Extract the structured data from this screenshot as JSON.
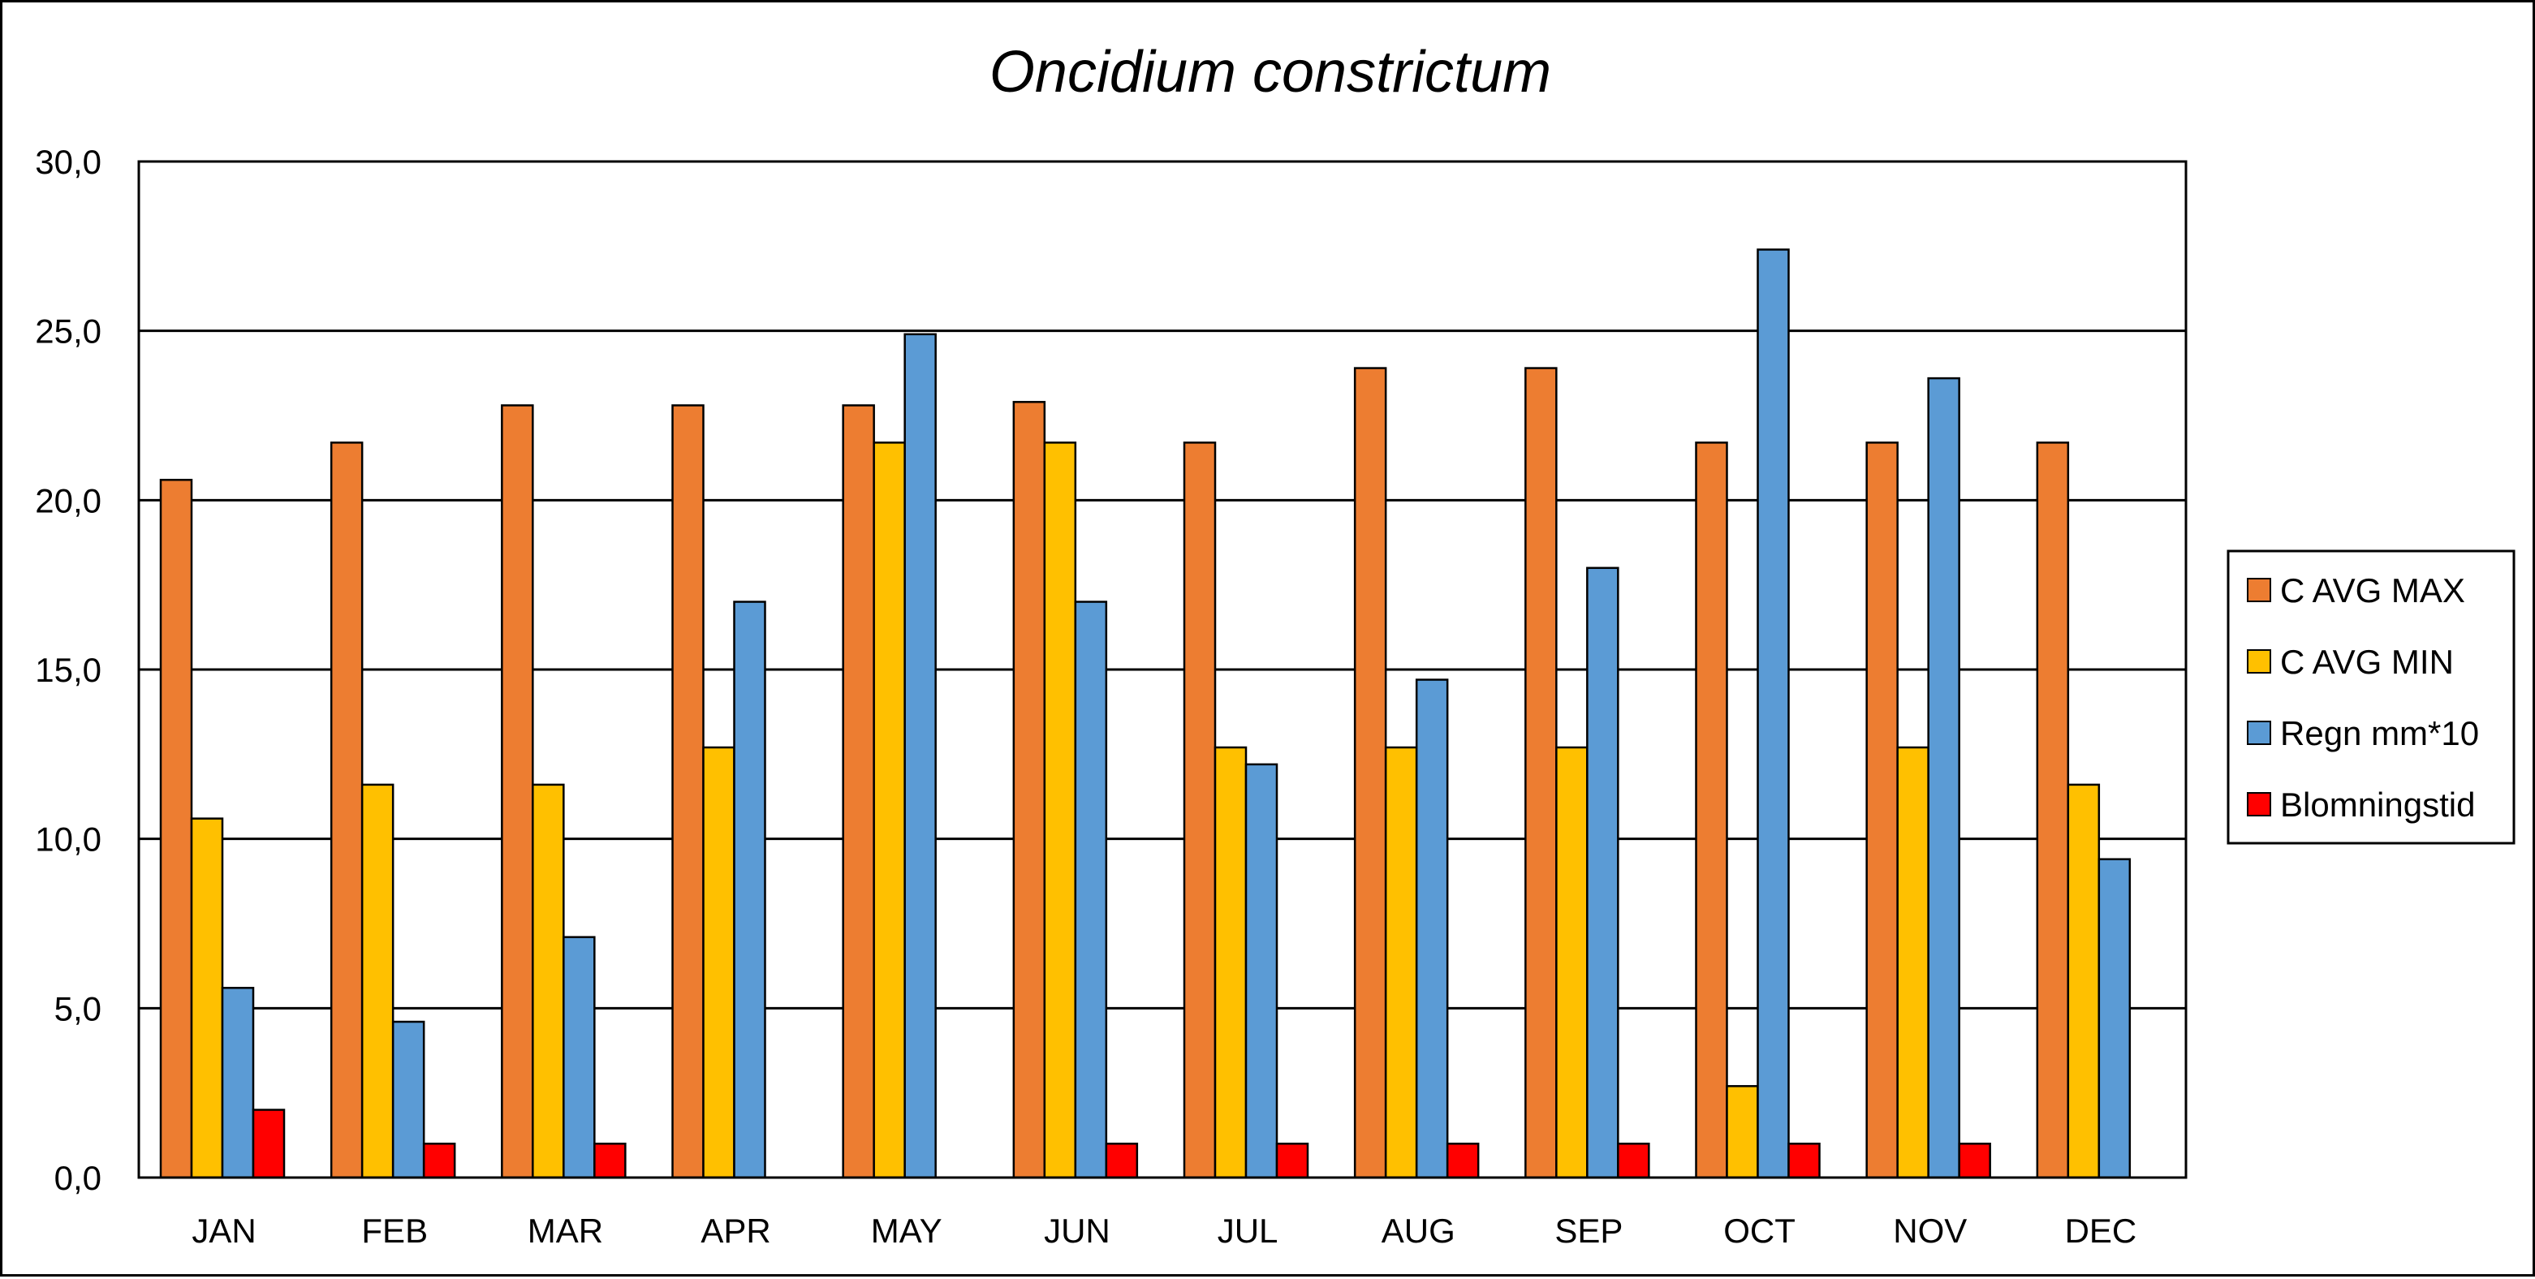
{
  "chart_data": {
    "type": "bar",
    "title": "Oncidium constrictum",
    "xlabel": "",
    "ylabel": "",
    "ylim": [
      0,
      30
    ],
    "yticks": [
      "0,0",
      "5,0",
      "10,0",
      "15,0",
      "20,0",
      "25,0",
      "30,0"
    ],
    "grid": true,
    "legend_position": "right",
    "categories": [
      "JAN",
      "FEB",
      "MAR",
      "APR",
      "MAY",
      "JUN",
      "JUL",
      "AUG",
      "SEP",
      "OCT",
      "NOV",
      "DEC"
    ],
    "series": [
      {
        "name": "C AVG MAX",
        "color": "#ED7D31",
        "values": [
          20.6,
          21.7,
          22.8,
          22.8,
          22.8,
          22.9,
          21.7,
          23.9,
          23.9,
          21.7,
          21.7,
          21.7
        ]
      },
      {
        "name": "C AVG MIN",
        "color": "#FFC000",
        "values": [
          10.6,
          11.6,
          11.6,
          12.7,
          21.7,
          21.7,
          12.7,
          12.7,
          12.7,
          2.7,
          12.7,
          11.6
        ]
      },
      {
        "name": "Regn mm*10",
        "color": "#5B9BD5",
        "values": [
          5.6,
          4.6,
          7.1,
          17.0,
          24.9,
          17.0,
          12.2,
          14.7,
          18.0,
          27.4,
          23.6,
          9.4
        ]
      },
      {
        "name": "Blomningstid",
        "color": "#FF0000",
        "values": [
          2,
          1,
          1,
          0,
          0,
          1,
          1,
          1,
          1,
          1,
          1,
          0
        ]
      }
    ]
  }
}
